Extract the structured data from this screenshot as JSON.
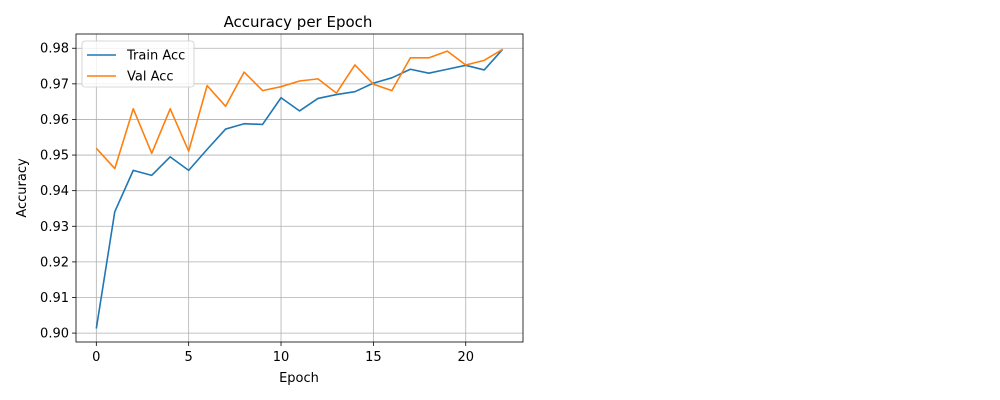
{
  "chart_data": {
    "type": "line",
    "title": "Accuracy per Epoch",
    "xlabel": "Epoch",
    "ylabel": "Accuracy",
    "xlim": [
      -1.1,
      23.1
    ],
    "ylim": [
      0.8975,
      0.984
    ],
    "xticks": [
      0,
      5,
      10,
      15,
      20
    ],
    "xtick_labels": [
      "0",
      "5",
      "10",
      "15",
      "20"
    ],
    "yticks": [
      0.9,
      0.91,
      0.92,
      0.93,
      0.94,
      0.95,
      0.96,
      0.97,
      0.98
    ],
    "ytick_labels": [
      "0.90",
      "0.91",
      "0.92",
      "0.93",
      "0.94",
      "0.95",
      "0.96",
      "0.97",
      "0.98"
    ],
    "grid": true,
    "legend_position": "top-left",
    "x": [
      0,
      1,
      2,
      3,
      4,
      5,
      6,
      7,
      8,
      9,
      10,
      11,
      12,
      13,
      14,
      15,
      16,
      17,
      18,
      19,
      20,
      21,
      22
    ],
    "series": [
      {
        "name": "Train Acc",
        "color": "#1f77b4",
        "values": [
          0.9013,
          0.9341,
          0.9457,
          0.9443,
          0.9495,
          0.9457,
          0.9516,
          0.9573,
          0.9588,
          0.9586,
          0.9661,
          0.9624,
          0.9659,
          0.967,
          0.9678,
          0.9702,
          0.9717,
          0.9741,
          0.973,
          0.9741,
          0.9752,
          0.9739,
          0.9797
        ]
      },
      {
        "name": "Val Acc",
        "color": "#ff7f0e",
        "values": [
          0.9519,
          0.9462,
          0.963,
          0.9505,
          0.963,
          0.9511,
          0.9695,
          0.9637,
          0.9733,
          0.9681,
          0.9692,
          0.9708,
          0.9714,
          0.9674,
          0.9753,
          0.9699,
          0.9681,
          0.9773,
          0.9773,
          0.9792,
          0.9753,
          0.9766,
          0.9797
        ]
      }
    ]
  }
}
